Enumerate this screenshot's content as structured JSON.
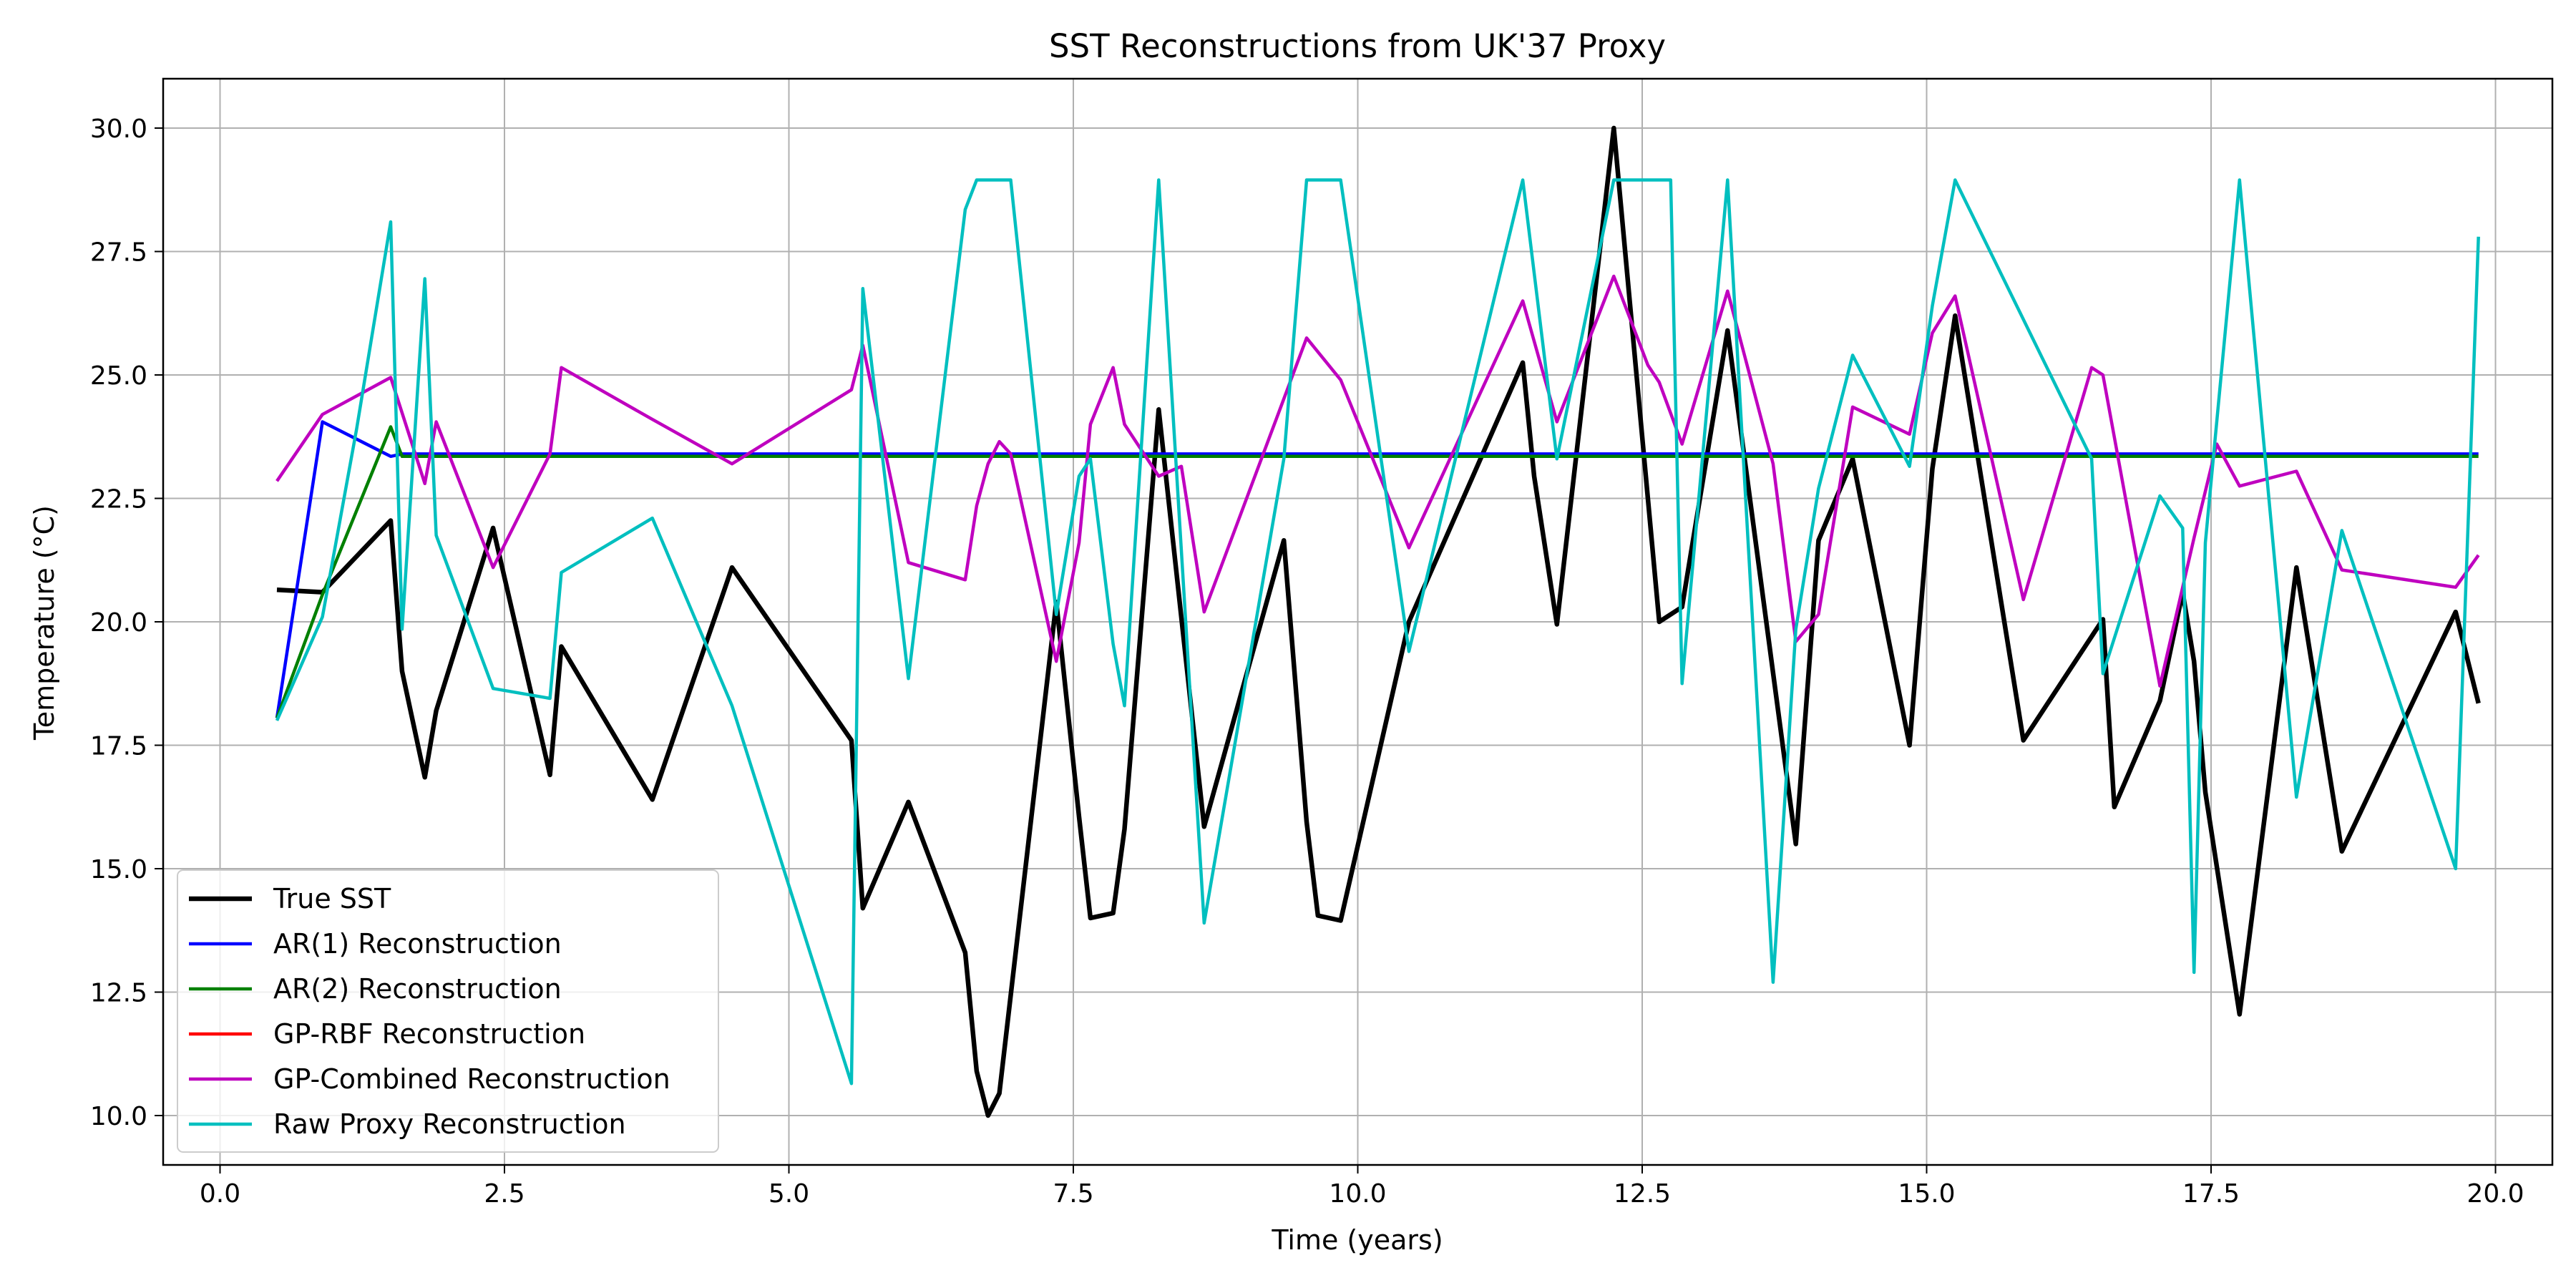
{
  "chart_data": {
    "type": "line",
    "title": "SST Reconstructions from UK'37 Proxy",
    "xlabel": "Time (years)",
    "ylabel": "Temperature (°C)",
    "xlim": [
      -0.5,
      20.5
    ],
    "ylim": [
      9.0,
      31.0
    ],
    "xticks": [
      0.0,
      2.5,
      5.0,
      7.5,
      10.0,
      12.5,
      15.0,
      17.5,
      20.0
    ],
    "xtick_labels": [
      "0.0",
      "2.5",
      "5.0",
      "7.5",
      "10.0",
      "12.5",
      "15.0",
      "17.5",
      "20.0"
    ],
    "yticks": [
      10.0,
      12.5,
      15.0,
      17.5,
      20.0,
      22.5,
      25.0,
      27.5,
      30.0
    ],
    "ytick_labels": [
      "10.0",
      "12.5",
      "15.0",
      "17.5",
      "20.0",
      "22.5",
      "25.0",
      "27.5",
      "30.0"
    ],
    "grid": true,
    "legend_position": "lower-left",
    "series": [
      {
        "name": "True SST",
        "color": "#000000",
        "points": [
          [
            0.5,
            20.65
          ],
          [
            0.9,
            20.6
          ],
          [
            1.5,
            22.05
          ],
          [
            1.6,
            19.0
          ],
          [
            1.8,
            16.85
          ],
          [
            1.9,
            18.2
          ],
          [
            2.4,
            21.9
          ],
          [
            2.9,
            16.9
          ],
          [
            3.0,
            19.5
          ],
          [
            3.8,
            16.4
          ],
          [
            4.5,
            21.1
          ],
          [
            5.55,
            17.6
          ],
          [
            5.65,
            14.2
          ],
          [
            6.05,
            16.35
          ],
          [
            6.55,
            13.3
          ],
          [
            6.65,
            10.9
          ],
          [
            6.75,
            10.0
          ],
          [
            6.85,
            10.45
          ],
          [
            7.35,
            20.4
          ],
          [
            7.55,
            16.05
          ],
          [
            7.65,
            14.0
          ],
          [
            7.85,
            14.1
          ],
          [
            7.95,
            15.8
          ],
          [
            8.25,
            24.3
          ],
          [
            8.65,
            15.85
          ],
          [
            9.35,
            21.65
          ],
          [
            9.55,
            15.95
          ],
          [
            9.65,
            14.05
          ],
          [
            9.85,
            13.95
          ],
          [
            10.45,
            20.0
          ],
          [
            11.45,
            25.25
          ],
          [
            11.55,
            22.95
          ],
          [
            11.75,
            19.95
          ],
          [
            12.25,
            30.0
          ],
          [
            12.65,
            20.0
          ],
          [
            12.85,
            20.3
          ],
          [
            13.25,
            25.9
          ],
          [
            13.85,
            15.5
          ],
          [
            14.05,
            21.65
          ],
          [
            14.35,
            23.3
          ],
          [
            14.85,
            17.5
          ],
          [
            15.05,
            23.1
          ],
          [
            15.25,
            26.2
          ],
          [
            15.85,
            17.6
          ],
          [
            16.55,
            20.05
          ],
          [
            16.65,
            16.25
          ],
          [
            17.05,
            18.4
          ],
          [
            17.25,
            20.6
          ],
          [
            17.35,
            19.2
          ],
          [
            17.45,
            16.55
          ],
          [
            17.75,
            12.05
          ],
          [
            18.25,
            21.1
          ],
          [
            18.65,
            15.35
          ],
          [
            19.65,
            20.2
          ],
          [
            19.85,
            18.35
          ]
        ]
      },
      {
        "name": "AR(1) Reconstruction",
        "color": "#0000ff",
        "points": [
          [
            0.5,
            18.05
          ],
          [
            0.9,
            24.05
          ],
          [
            1.5,
            23.35
          ],
          [
            1.6,
            23.4
          ],
          [
            19.85,
            23.4
          ]
        ]
      },
      {
        "name": "AR(2) Reconstruction",
        "color": "#008000",
        "points": [
          [
            0.5,
            18.05
          ],
          [
            0.9,
            20.55
          ],
          [
            1.5,
            23.95
          ],
          [
            1.6,
            23.35
          ],
          [
            19.85,
            23.35
          ]
        ]
      },
      {
        "name": "GP-RBF Reconstruction",
        "color": "#ff0000",
        "points": []
      },
      {
        "name": "GP-Combined Reconstruction",
        "color": "#bf00bf",
        "points": [
          [
            0.5,
            22.85
          ],
          [
            0.9,
            24.2
          ],
          [
            1.5,
            24.95
          ],
          [
            1.8,
            22.8
          ],
          [
            1.9,
            24.05
          ],
          [
            2.4,
            21.1
          ],
          [
            2.9,
            23.4
          ],
          [
            3.0,
            25.15
          ],
          [
            3.8,
            24.1
          ],
          [
            4.5,
            23.2
          ],
          [
            5.55,
            24.7
          ],
          [
            5.65,
            25.6
          ],
          [
            6.05,
            21.2
          ],
          [
            6.55,
            20.85
          ],
          [
            6.65,
            22.35
          ],
          [
            6.75,
            23.2
          ],
          [
            6.85,
            23.65
          ],
          [
            6.95,
            23.4
          ],
          [
            7.35,
            19.2
          ],
          [
            7.55,
            21.6
          ],
          [
            7.65,
            24.0
          ],
          [
            7.85,
            25.15
          ],
          [
            7.95,
            24.0
          ],
          [
            8.25,
            22.95
          ],
          [
            8.45,
            23.15
          ],
          [
            8.65,
            20.2
          ],
          [
            9.55,
            25.75
          ],
          [
            9.85,
            24.9
          ],
          [
            10.45,
            21.5
          ],
          [
            11.45,
            26.5
          ],
          [
            11.75,
            24.05
          ],
          [
            12.25,
            27.0
          ],
          [
            12.55,
            25.2
          ],
          [
            12.65,
            24.85
          ],
          [
            12.85,
            23.6
          ],
          [
            13.25,
            26.7
          ],
          [
            13.65,
            23.2
          ],
          [
            13.85,
            19.6
          ],
          [
            14.05,
            20.15
          ],
          [
            14.35,
            24.35
          ],
          [
            14.85,
            23.8
          ],
          [
            15.05,
            25.85
          ],
          [
            15.25,
            26.6
          ],
          [
            15.85,
            20.45
          ],
          [
            16.45,
            25.15
          ],
          [
            16.55,
            25.0
          ],
          [
            17.05,
            18.7
          ],
          [
            17.35,
            21.7
          ],
          [
            17.55,
            23.6
          ],
          [
            17.75,
            22.75
          ],
          [
            18.25,
            23.05
          ],
          [
            18.65,
            21.05
          ],
          [
            19.65,
            20.7
          ],
          [
            19.85,
            21.35
          ]
        ]
      },
      {
        "name": "Raw Proxy Reconstruction",
        "color": "#00bfbf",
        "points": [
          [
            0.5,
            18.0
          ],
          [
            0.9,
            20.1
          ],
          [
            1.2,
            23.9
          ],
          [
            1.5,
            28.1
          ],
          [
            1.6,
            19.85
          ],
          [
            1.8,
            26.95
          ],
          [
            1.9,
            21.75
          ],
          [
            2.4,
            18.65
          ],
          [
            2.9,
            18.45
          ],
          [
            3.0,
            21.0
          ],
          [
            3.8,
            22.1
          ],
          [
            4.5,
            18.3
          ],
          [
            5.55,
            10.65
          ],
          [
            5.65,
            26.75
          ],
          [
            6.05,
            18.85
          ],
          [
            6.55,
            28.35
          ],
          [
            6.65,
            28.95
          ],
          [
            6.95,
            28.95
          ],
          [
            7.35,
            20.15
          ],
          [
            7.55,
            22.95
          ],
          [
            7.65,
            23.3
          ],
          [
            7.85,
            19.55
          ],
          [
            7.95,
            18.3
          ],
          [
            8.25,
            28.95
          ],
          [
            8.65,
            13.9
          ],
          [
            9.35,
            23.3
          ],
          [
            9.55,
            28.95
          ],
          [
            9.85,
            28.95
          ],
          [
            10.45,
            19.4
          ],
          [
            11.45,
            28.95
          ],
          [
            11.75,
            23.3
          ],
          [
            12.25,
            28.95
          ],
          [
            12.75,
            28.95
          ],
          [
            12.85,
            18.75
          ],
          [
            13.25,
            28.95
          ],
          [
            13.65,
            12.7
          ],
          [
            13.85,
            19.85
          ],
          [
            14.05,
            22.7
          ],
          [
            14.35,
            25.4
          ],
          [
            14.85,
            23.15
          ],
          [
            15.05,
            26.4
          ],
          [
            15.25,
            28.95
          ],
          [
            16.45,
            23.3
          ],
          [
            16.55,
            18.95
          ],
          [
            17.05,
            22.55
          ],
          [
            17.25,
            21.9
          ],
          [
            17.35,
            12.9
          ],
          [
            17.45,
            21.6
          ],
          [
            17.75,
            28.95
          ],
          [
            18.25,
            16.45
          ],
          [
            18.65,
            21.85
          ],
          [
            19.65,
            15.0
          ],
          [
            19.85,
            27.8
          ]
        ]
      }
    ]
  }
}
